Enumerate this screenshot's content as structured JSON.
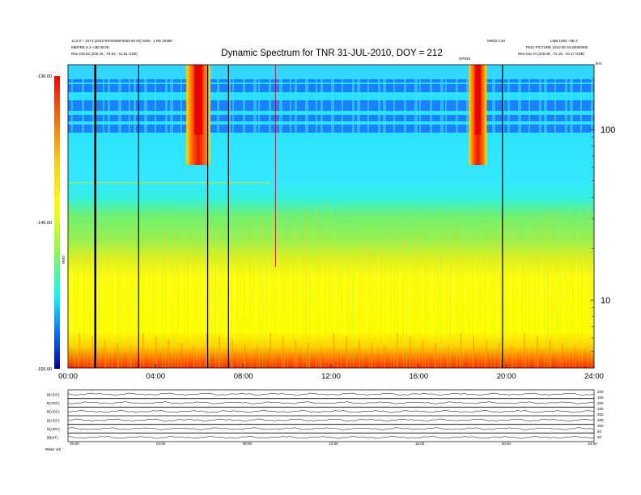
{
  "chart_data": {
    "type": "heatmap",
    "title": "Dynamic Spectrum for TNR 31-JUL-2010, DOY = 212",
    "header_left": [
      "11.0.0 + 1071 (2010 RF04506F0050 00.00) S0M - 1 RE 2048P",
      "MB/FRE 8.3 +3B 00:00",
      "Res    219.52 (226.45, -74.54, -11.51 GSE)"
    ],
    "header_right": [
      "MR03 2:40",
      "LMB 1000 +3B 3",
      "PEIS PICTURE 2010 06 03 20000000",
      "Res    216.70 (226.09, -72.19, -10.17 GSE)"
    ],
    "colorbar": {
      "label": "RMS",
      "ticks": [
        "-130.00",
        "-145.00",
        "-160.00"
      ],
      "range": [
        -160,
        -130
      ]
    },
    "x_ticks": [
      "00:00",
      "04:00",
      "08:00",
      "12:00",
      "16:00",
      "20:00",
      "24:00"
    ],
    "x_range_hours": [
      0,
      24
    ],
    "y_scale": "log",
    "y_unit": "kHz",
    "y_ticks": [
      "100",
      "10"
    ],
    "y_range": [
      4,
      240
    ],
    "event_label": "GPIOS",
    "data_gaps_hours": [
      1.2,
      3.2,
      6.35,
      7.3,
      19.8
    ],
    "faint_line_hours": [
      9.45
    ],
    "bursts": [
      {
        "start_hour": 5.4,
        "end_hour": 6.5,
        "min_freq": 62,
        "max_freq": 240
      },
      {
        "start_hour": 18.3,
        "end_hour": 19.1,
        "min_freq": 62,
        "max_freq": 240
      }
    ],
    "bottom_panels": {
      "labels": [
        "B(ADC)",
        "B(ADC)",
        "B(ADC)",
        "B(ADC)",
        "N(ADC)",
        "|B|(nT)"
      ],
      "right_ticks": [
        "200",
        "100",
        "200",
        "100",
        "300",
        "200",
        "300",
        "40",
        "20"
      ],
      "x_ticks": [
        "00:00",
        "04:00",
        "08:00",
        "12:00",
        "16:00",
        "20:00",
        "24:00"
      ]
    },
    "footer_left": "Wake  orb"
  }
}
